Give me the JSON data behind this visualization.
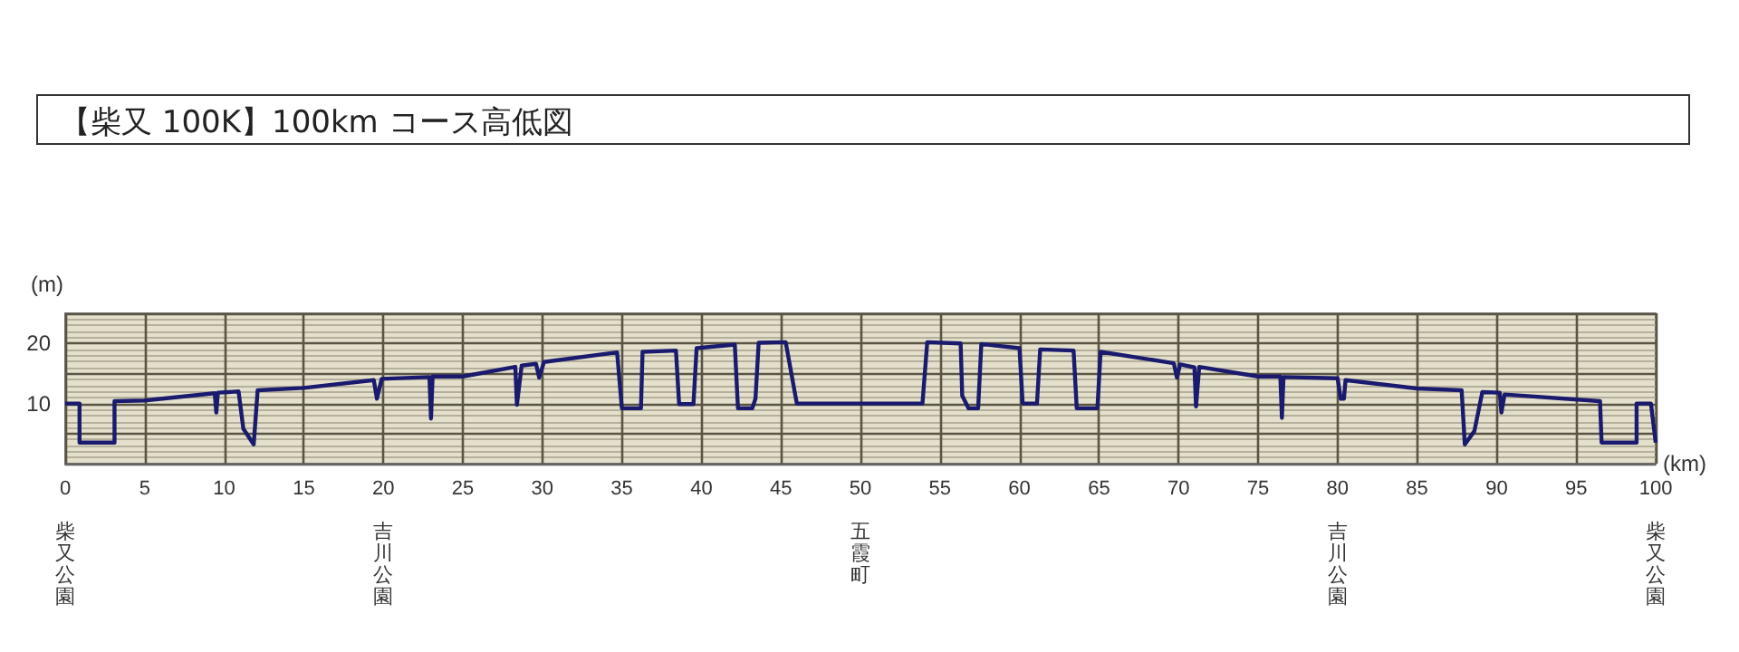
{
  "chart_data": {
    "type": "line",
    "title": "【柴又 100K】100km コース高低図",
    "xlabel": "(km)",
    "ylabel": "(m)",
    "xlim": [
      0,
      100
    ],
    "xticks": [
      {
        "value": 0,
        "label": "0\n柴又公園"
      },
      5,
      10,
      15,
      {
        "value": 20,
        "label": "20\n吉川公園"
      },
      25,
      30,
      35,
      40,
      45,
      {
        "value": 50,
        "label": "50\n五霞町"
      },
      55,
      60,
      65,
      70,
      75,
      {
        "value": 80,
        "label": "80\n吉川公園"
      },
      85,
      90,
      95,
      {
        "value": 100,
        "label": "100\n柴又公園"
      }
    ],
    "ylim": [
      0,
      25
    ],
    "yticks": [
      {
        "value": 5,
        "label": null
      },
      10,
      {
        "value": 15,
        "label": null
      },
      20
    ],
    "grid": true,
    "marker": "none",
    "line_style": "solid",
    "series": [
      {
        "color": "#1a1a6e",
        "x": [
          0,
          0.9,
          0.9,
          3.1,
          3.1,
          5,
          9.4,
          9.5,
          9.6,
          10.9,
          11.2,
          11.85,
          12.1,
          15,
          19.4,
          19.6,
          19.9,
          22.9,
          23.0,
          23.1,
          25,
          28.3,
          28.4,
          28.7,
          29.6,
          29.8,
          30.1,
          34.7,
          35,
          36.2,
          36.3,
          38.4,
          38.6,
          39.5,
          39.7,
          42.1,
          42.3,
          43.2,
          43.4,
          43.6,
          45.3,
          46,
          53.9,
          54.2,
          56.3,
          56.4,
          56.8,
          57.4,
          57.6,
          60,
          60.2,
          61.1,
          61.3,
          63.4,
          63.6,
          64.9,
          65.1,
          69.7,
          69.9,
          70.1,
          71,
          71.1,
          71.3,
          75,
          76.4,
          76.5,
          76.6,
          80,
          80.2,
          80.4,
          80.5,
          85,
          87.8,
          88,
          88.6,
          89.1,
          90.2,
          90.3,
          90.5,
          96.5,
          96.6,
          98.8,
          98.8,
          99.7,
          100
        ],
        "values": [
          10,
          10,
          3.5,
          3.5,
          10.4,
          10.5,
          11.7,
          8.5,
          11.8,
          12,
          5.8,
          3.2,
          12.2,
          12.6,
          13.9,
          10.8,
          14.1,
          14.4,
          7.5,
          14.5,
          14.5,
          16.1,
          9.8,
          16.3,
          16.6,
          14.3,
          16.9,
          18.5,
          9.2,
          9.2,
          18.6,
          18.8,
          9.9,
          9.9,
          19.2,
          19.8,
          9.2,
          9.2,
          10.8,
          20.1,
          20.2,
          10,
          10,
          20.2,
          20,
          11.3,
          9.2,
          9.2,
          19.9,
          19.2,
          10,
          10,
          19,
          18.8,
          9.2,
          9.2,
          18.6,
          16.7,
          14.3,
          16.5,
          16,
          9.5,
          16.1,
          14.5,
          14.5,
          7.6,
          14.4,
          14.2,
          10.8,
          10.8,
          13.9,
          12.5,
          12.2,
          3.2,
          5.4,
          11.9,
          11.8,
          8.5,
          11.5,
          10.4,
          3.5,
          3.5,
          10,
          10,
          3.5
        ]
      }
    ]
  }
}
